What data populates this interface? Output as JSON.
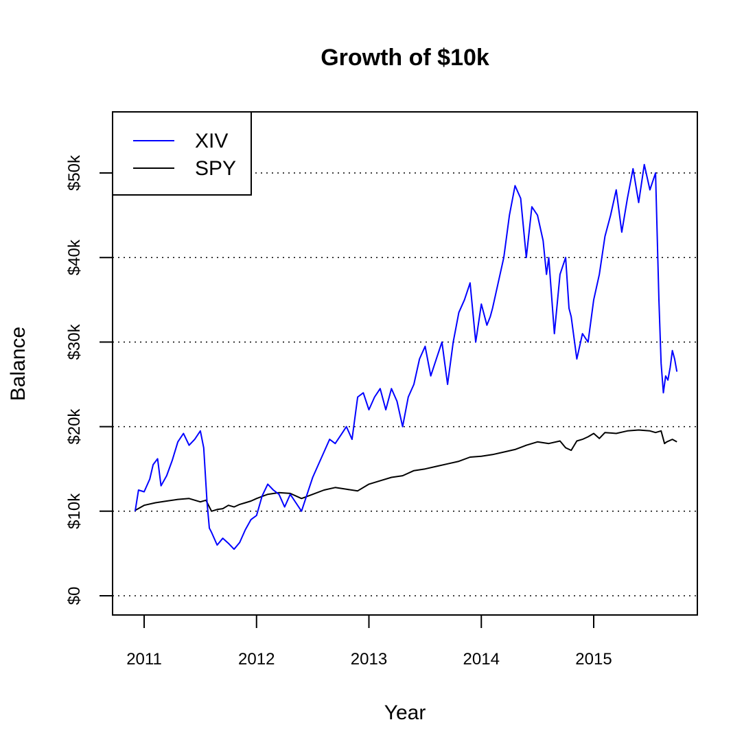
{
  "chart_data": {
    "type": "line",
    "title": "Growth of $10k",
    "xlabel": "Year",
    "ylabel": "Balance",
    "x_range": [
      2010.92,
      2015.74
    ],
    "ylim": [
      0,
      55000
    ],
    "x_ticks": [
      {
        "value": 2011,
        "label": "2011"
      },
      {
        "value": 2012,
        "label": "2012"
      },
      {
        "value": 2013,
        "label": "2013"
      },
      {
        "value": 2014,
        "label": "2014"
      },
      {
        "value": 2015,
        "label": "2015"
      }
    ],
    "y_ticks": [
      {
        "value": 0,
        "label": "$0"
      },
      {
        "value": 10000,
        "label": "$10k"
      },
      {
        "value": 20000,
        "label": "$20k"
      },
      {
        "value": 30000,
        "label": "$30k"
      },
      {
        "value": 40000,
        "label": "$40k"
      },
      {
        "value": 50000,
        "label": "$50k"
      }
    ],
    "grid": "horizontal-dotted",
    "legend": {
      "position": "top-left"
    },
    "series": [
      {
        "name": "XIV",
        "color": "#0000ff",
        "x": [
          2010.92,
          2010.95,
          2011.0,
          2011.05,
          2011.08,
          2011.12,
          2011.15,
          2011.2,
          2011.25,
          2011.3,
          2011.35,
          2011.4,
          2011.45,
          2011.5,
          2011.53,
          2011.56,
          2011.58,
          2011.6,
          2011.65,
          2011.7,
          2011.75,
          2011.8,
          2011.85,
          2011.9,
          2011.95,
          2012.0,
          2012.05,
          2012.1,
          2012.15,
          2012.2,
          2012.25,
          2012.3,
          2012.35,
          2012.4,
          2012.45,
          2012.5,
          2012.55,
          2012.6,
          2012.65,
          2012.7,
          2012.75,
          2012.8,
          2012.85,
          2012.9,
          2012.95,
          2013.0,
          2013.05,
          2013.1,
          2013.15,
          2013.2,
          2013.25,
          2013.3,
          2013.35,
          2013.4,
          2013.45,
          2013.5,
          2013.55,
          2013.6,
          2013.65,
          2013.7,
          2013.75,
          2013.8,
          2013.85,
          2013.9,
          2013.95,
          2014.0,
          2014.05,
          2014.08,
          2014.1,
          2014.15,
          2014.2,
          2014.25,
          2014.3,
          2014.35,
          2014.4,
          2014.45,
          2014.5,
          2014.55,
          2014.58,
          2014.6,
          2014.65,
          2014.7,
          2014.75,
          2014.78,
          2014.8,
          2014.85,
          2014.9,
          2014.95,
          2015.0,
          2015.05,
          2015.1,
          2015.15,
          2015.2,
          2015.25,
          2015.3,
          2015.35,
          2015.4,
          2015.45,
          2015.5,
          2015.55,
          2015.58,
          2015.6,
          2015.62,
          2015.64,
          2015.66,
          2015.68,
          2015.7,
          2015.72,
          2015.74
        ],
        "values": [
          10000,
          12500,
          12300,
          13800,
          15500,
          16200,
          13000,
          14200,
          16000,
          18200,
          19200,
          17800,
          18500,
          19500,
          17500,
          11000,
          8000,
          7500,
          6000,
          6800,
          6200,
          5500,
          6300,
          7800,
          9000,
          9500,
          11800,
          13200,
          12500,
          12000,
          10500,
          12000,
          11000,
          10000,
          12000,
          14000,
          15500,
          17000,
          18500,
          18000,
          19000,
          20000,
          18500,
          23500,
          24000,
          22000,
          23500,
          24500,
          22000,
          24500,
          23000,
          20000,
          23500,
          25000,
          28000,
          29500,
          26000,
          28000,
          30000,
          25000,
          30000,
          33500,
          35000,
          37000,
          30000,
          34500,
          32000,
          33000,
          34000,
          37000,
          40000,
          45000,
          48500,
          47000,
          40000,
          46000,
          45000,
          42000,
          38000,
          40000,
          31000,
          38000,
          40000,
          34000,
          33000,
          28000,
          31000,
          30000,
          35000,
          38000,
          42500,
          45000,
          48000,
          43000,
          47000,
          50500,
          46500,
          51000,
          48000,
          50000,
          35000,
          27500,
          24000,
          26000,
          25500,
          27000,
          29000,
          28000,
          26500
        ]
      },
      {
        "name": "SPY",
        "color": "#000000",
        "x": [
          2010.92,
          2011.0,
          2011.1,
          2011.2,
          2011.3,
          2011.4,
          2011.5,
          2011.55,
          2011.58,
          2011.6,
          2011.65,
          2011.7,
          2011.75,
          2011.8,
          2011.85,
          2011.9,
          2011.95,
          2012.0,
          2012.1,
          2012.2,
          2012.3,
          2012.4,
          2012.5,
          2012.6,
          2012.7,
          2012.8,
          2012.9,
          2013.0,
          2013.1,
          2013.2,
          2013.3,
          2013.4,
          2013.5,
          2013.6,
          2013.7,
          2013.8,
          2013.9,
          2014.0,
          2014.1,
          2014.2,
          2014.3,
          2014.4,
          2014.5,
          2014.6,
          2014.7,
          2014.75,
          2014.8,
          2014.85,
          2014.9,
          2014.95,
          2015.0,
          2015.05,
          2015.1,
          2015.2,
          2015.3,
          2015.4,
          2015.5,
          2015.55,
          2015.6,
          2015.63,
          2015.65,
          2015.7,
          2015.74
        ],
        "values": [
          10100,
          10700,
          11000,
          11200,
          11400,
          11500,
          11100,
          11300,
          10500,
          10000,
          10200,
          10300,
          10700,
          10500,
          10800,
          11000,
          11200,
          11500,
          12000,
          12200,
          12100,
          11500,
          12000,
          12500,
          12800,
          12600,
          12400,
          13200,
          13600,
          14000,
          14200,
          14800,
          15000,
          15300,
          15600,
          15900,
          16400,
          16500,
          16700,
          17000,
          17300,
          17800,
          18200,
          18000,
          18300,
          17500,
          17200,
          18300,
          18500,
          18800,
          19200,
          18600,
          19300,
          19200,
          19500,
          19600,
          19500,
          19300,
          19500,
          18000,
          18200,
          18500,
          18200
        ]
      }
    ]
  }
}
